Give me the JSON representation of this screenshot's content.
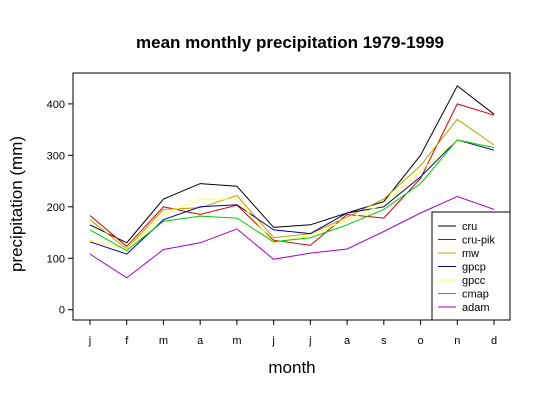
{
  "chart_data": {
    "type": "line",
    "title": "mean monthly precipitation 1979-1999",
    "xlabel": "month",
    "ylabel": "precipitation (mm)",
    "categories": [
      "j",
      "f",
      "m",
      "a",
      "m",
      "j",
      "j",
      "a",
      "s",
      "o",
      "n",
      "d"
    ],
    "ylim": [
      -20,
      460
    ],
    "yticks": [
      0,
      100,
      200,
      300,
      400
    ],
    "grid": false,
    "legend_position": "bottom-right",
    "series": [
      {
        "name": "cru",
        "color": "#000000",
        "values": [
          165,
          130,
          215,
          245,
          240,
          160,
          165,
          188,
          210,
          300,
          435,
          380
        ]
      },
      {
        "name": "cru-pik",
        "color": "#cc0000",
        "values": [
          183,
          123,
          200,
          185,
          203,
          135,
          125,
          185,
          178,
          255,
          400,
          378
        ]
      },
      {
        "name": "mw",
        "color": "#b8a000",
        "values": [
          175,
          118,
          195,
          198,
          222,
          140,
          148,
          180,
          215,
          280,
          370,
          320
        ]
      },
      {
        "name": "gpcp",
        "color": "#000099",
        "values": [
          132,
          108,
          175,
          200,
          204,
          155,
          148,
          188,
          200,
          258,
          330,
          310
        ]
      },
      {
        "name": "gpcc",
        "color": "#ffff44",
        "values": [
          135,
          118,
          185,
          215,
          215,
          130,
          145,
          175,
          205,
          270,
          330,
          315
        ]
      },
      {
        "name": "cmap",
        "color": "#00cc00",
        "values": [
          155,
          115,
          172,
          182,
          178,
          132,
          140,
          165,
          195,
          245,
          330,
          315
        ]
      },
      {
        "name": "adam",
        "color": "#aa00cc",
        "values": [
          108,
          62,
          117,
          130,
          157,
          98,
          110,
          118,
          152,
          188,
          220,
          195
        ]
      }
    ]
  }
}
